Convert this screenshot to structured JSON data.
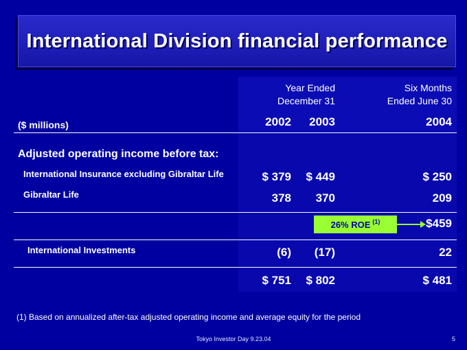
{
  "title": "International Division financial performance",
  "header": {
    "year_ended_line1": "Year Ended",
    "year_ended_line2": "December 31",
    "six_months_line1": "Six Months",
    "six_months_line2": "Ended June 30",
    "units": "($ millions)",
    "year_2002": "2002",
    "year_2003": "2003",
    "year_2004": "2004"
  },
  "rows": {
    "section_label": "Adjusted operating income before tax:",
    "intl_insurance": {
      "label": "International Insurance excluding Gibraltar Life",
      "v2002": "$ 379",
      "v2003": "$ 449",
      "v2004": "$ 250"
    },
    "gibraltar": {
      "label": "Gibraltar Life",
      "v2002": "378",
      "v2003": "370",
      "v2004": "209"
    },
    "subtotal": {
      "roe_text": "26% ROE",
      "roe_note": "(1)",
      "v2004": "$459"
    },
    "intl_investments": {
      "label": "International Investments",
      "v2002": "(6)",
      "v2003": "(17)",
      "v2004": "22"
    },
    "total": {
      "v2002": "$ 751",
      "v2003": "$ 802",
      "v2004": "$ 481"
    }
  },
  "footnote": "(1) Based on annualized after-tax adjusted operating income and average equity for the period",
  "footer_center": "Tokyo Investor Day 9.23.04",
  "page_number": "5"
}
